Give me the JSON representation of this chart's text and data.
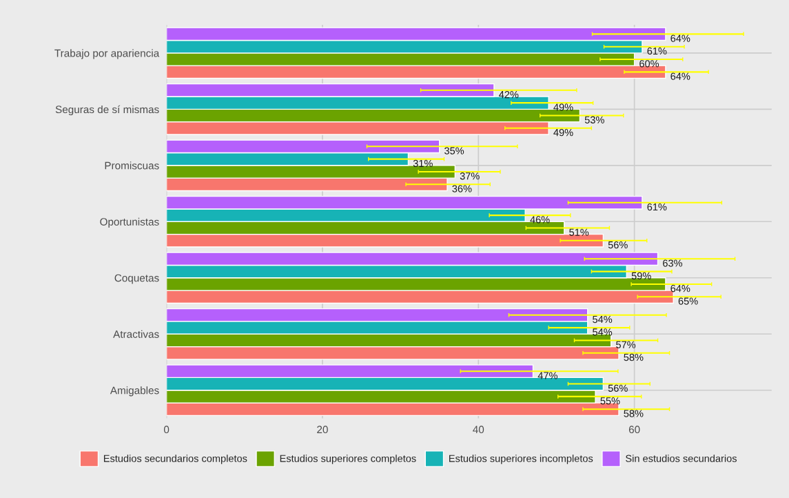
{
  "chart_data": {
    "type": "bar",
    "orientation": "horizontal",
    "categories": [
      "Trabajo por apariencia",
      "Seguras de sí mismas",
      "Promiscuas",
      "Oportunistas",
      "Coquetas",
      "Atractivas",
      "Amigables"
    ],
    "series": [
      {
        "name": "Estudios secundarios completos",
        "color": "#f8766d",
        "values": [
          64,
          49,
          36,
          56,
          65,
          58,
          58
        ],
        "value_labels": [
          "64%",
          "49%",
          "36%",
          "56%",
          "65%",
          "58%",
          "58%"
        ],
        "errors": [
          [
            58.7,
            69.5
          ],
          [
            43.4,
            54.5
          ],
          [
            30.7,
            41.5
          ],
          [
            50.5,
            61.6
          ],
          [
            60.4,
            71.1
          ],
          [
            53.4,
            64.5
          ],
          [
            53.4,
            64.5
          ]
        ]
      },
      {
        "name": "Estudios superiores completos",
        "color": "#6ba300",
        "values": [
          60,
          53,
          37,
          51,
          64,
          57,
          55
        ],
        "value_labels": [
          "60%",
          "53%",
          "37%",
          "51%",
          "64%",
          "57%",
          "55%"
        ],
        "errors": [
          [
            55.6,
            66.2
          ],
          [
            47.9,
            58.6
          ],
          [
            32.3,
            42.8
          ],
          [
            46.1,
            56.8
          ],
          [
            59.6,
            69.9
          ],
          [
            52.3,
            63.0
          ],
          [
            50.2,
            60.9
          ]
        ]
      },
      {
        "name": "Estudios superiores incompletos",
        "color": "#17b3b6",
        "values": [
          61,
          49,
          31,
          46,
          59,
          54,
          56
        ],
        "value_labels": [
          "61%",
          "49%",
          "31%",
          "46%",
          "59%",
          "54%",
          "56%"
        ],
        "errors": [
          [
            56.1,
            66.4
          ],
          [
            44.2,
            54.7
          ],
          [
            25.9,
            35.6
          ],
          [
            41.4,
            51.8
          ],
          [
            54.5,
            64.8
          ],
          [
            49.0,
            59.4
          ],
          [
            51.5,
            62.0
          ]
        ]
      },
      {
        "name": "Sin estudios secundarios",
        "color": "#b560fc",
        "values": [
          64,
          42,
          35,
          61,
          63,
          54,
          47
        ],
        "value_labels": [
          "64%",
          "42%",
          "35%",
          "61%",
          "63%",
          "54%",
          "47%"
        ],
        "errors": [
          [
            54.6,
            74.0
          ],
          [
            32.6,
            52.6
          ],
          [
            25.7,
            45.0
          ],
          [
            51.5,
            71.2
          ],
          [
            53.6,
            72.9
          ],
          [
            43.9,
            64.1
          ],
          [
            37.7,
            57.9
          ]
        ]
      }
    ],
    "xlim": [
      0,
      77.6
    ],
    "xticks": [
      0,
      20,
      40,
      60
    ],
    "grid": true,
    "legend": "bottom"
  }
}
